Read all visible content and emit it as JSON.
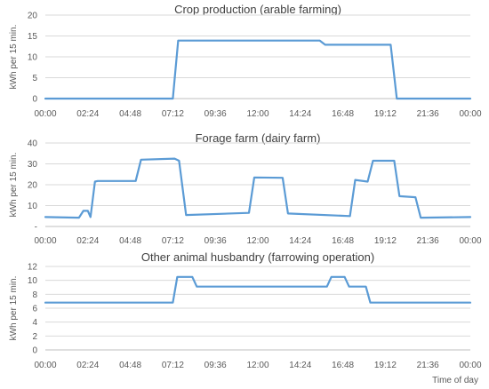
{
  "chart_data": [
    {
      "type": "line",
      "title": "Crop production (arable farming)",
      "ylabel": "kWh per 15 min.",
      "xlabel": "",
      "xlim": [
        0,
        24
      ],
      "ylim": [
        0,
        20
      ],
      "yticks": [
        "0",
        "5",
        "10",
        "15",
        "20"
      ],
      "ytick_values": [
        0,
        5,
        10,
        15,
        20
      ],
      "xticks": [
        "00:00",
        "02:24",
        "04:48",
        "07:12",
        "09:36",
        "12:00",
        "14:24",
        "16:48",
        "19:12",
        "21:36",
        "00:00"
      ],
      "grid": true,
      "color": "#5b9bd5",
      "series": [
        {
          "x": [
            0,
            7.2,
            7.5,
            15.5,
            15.8,
            19.5,
            19.85,
            24
          ],
          "y": [
            0,
            0,
            13.9,
            13.9,
            12.9,
            12.9,
            0,
            0
          ]
        }
      ]
    },
    {
      "type": "line",
      "title": "Forage farm (dairy farm)",
      "ylabel": "kWh per 15 min.",
      "xlabel": "",
      "xlim": [
        0,
        24
      ],
      "ylim": [
        0,
        40
      ],
      "yticks": [
        "-",
        "10",
        "20",
        "30",
        "40"
      ],
      "ytick_values": [
        0,
        10,
        20,
        30,
        40
      ],
      "xticks": [
        "00:00",
        "02:24",
        "04:48",
        "07:12",
        "09:36",
        "12:00",
        "14:24",
        "16:48",
        "19:12",
        "21:36",
        "00:00"
      ],
      "grid": true,
      "color": "#5b9bd5",
      "series": [
        {
          "x": [
            0,
            1.9,
            2.15,
            2.4,
            2.55,
            2.8,
            2.95,
            5.1,
            5.4,
            7.3,
            7.55,
            7.95,
            11.5,
            11.8,
            13.4,
            13.7,
            17.2,
            17.5,
            18.2,
            18.5,
            19.7,
            20.0,
            20.9,
            21.2,
            24
          ],
          "y": [
            4.5,
            4.2,
            7.5,
            7.5,
            4.5,
            21.5,
            21.8,
            21.8,
            32,
            32.5,
            31.5,
            5.5,
            6.5,
            23.5,
            23.3,
            6.2,
            5,
            22.3,
            21.5,
            31.5,
            31.5,
            14.5,
            14,
            4.2,
            4.5
          ]
        }
      ]
    },
    {
      "type": "line",
      "title": "Other animal husbandry (farrowing operation)",
      "ylabel": "kWh per 15 min.",
      "xlabel": "Time of day",
      "xlim": [
        0,
        24
      ],
      "ylim": [
        0,
        12
      ],
      "yticks": [
        "0",
        "2",
        "4",
        "6",
        "8",
        "10",
        "12"
      ],
      "ytick_values": [
        0,
        2,
        4,
        6,
        8,
        10,
        12
      ],
      "xticks": [
        "00:00",
        "02:24",
        "04:48",
        "07:12",
        "09:36",
        "12:00",
        "14:24",
        "16:48",
        "19:12",
        "21:36",
        "00:00"
      ],
      "grid": true,
      "color": "#5b9bd5",
      "series": [
        {
          "x": [
            0,
            7.2,
            7.45,
            8.3,
            8.55,
            15.9,
            16.15,
            16.9,
            17.15,
            18.1,
            18.35,
            24
          ],
          "y": [
            6.8,
            6.8,
            10.5,
            10.5,
            9.1,
            9.1,
            10.5,
            10.5,
            9.1,
            9.1,
            6.8,
            6.8
          ]
        }
      ]
    }
  ]
}
